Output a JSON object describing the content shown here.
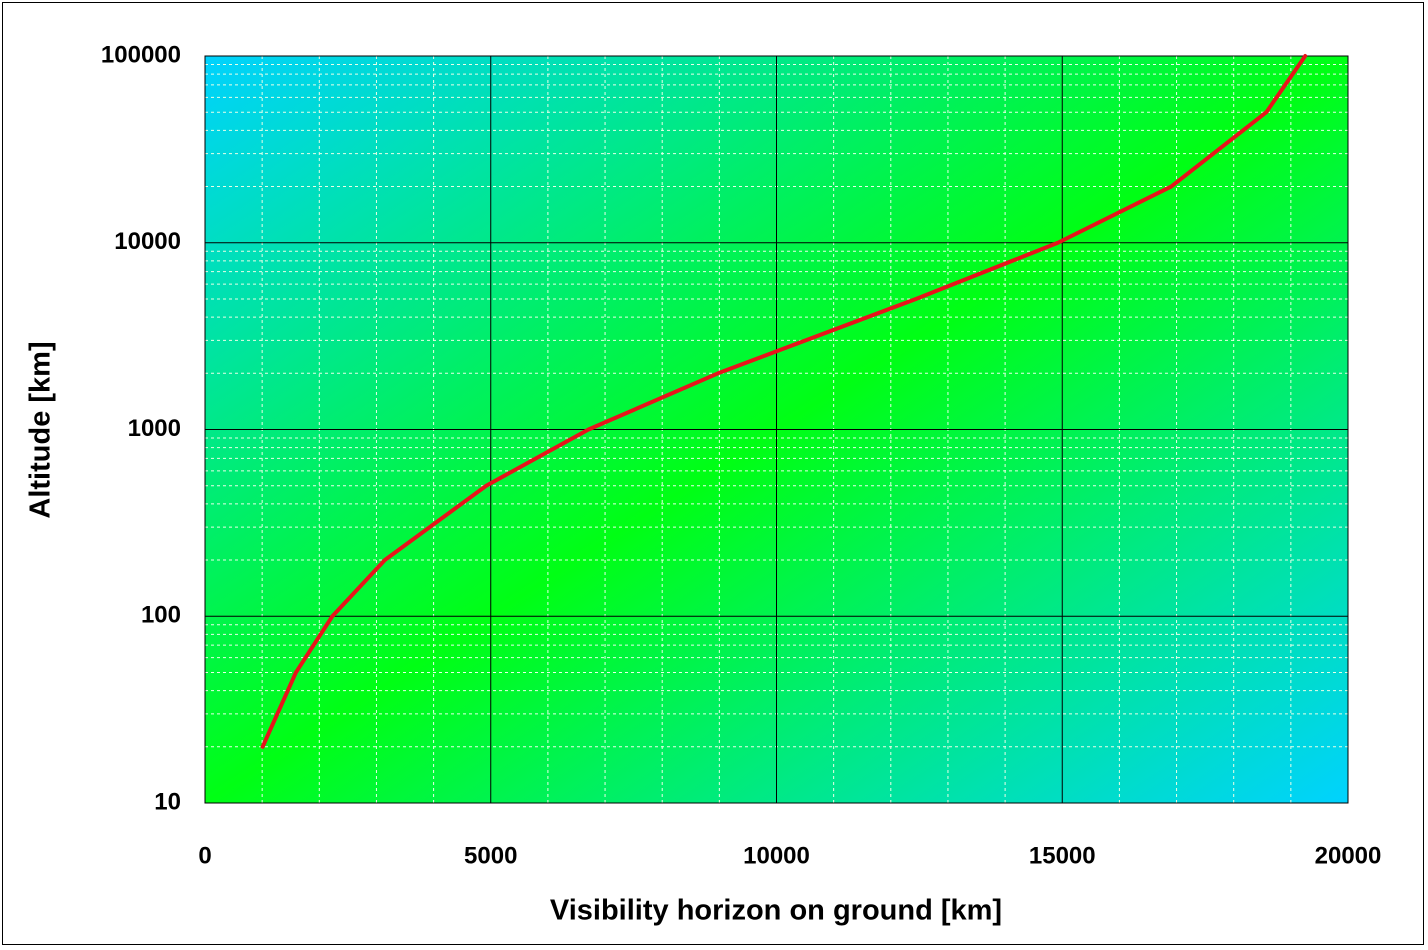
{
  "chart_data": {
    "type": "line",
    "x_label": "Visibility horizon on ground [km]",
    "y_label": "Altitude [km]",
    "series": [
      {
        "name": "Visibility horizon",
        "color": "#e8141b",
        "x": [
          1008,
          1591,
          2228,
          3147,
          4921,
          6710,
          8978,
          12439,
          14924,
          16906,
          18571,
          19251
        ],
        "values": [
          20,
          50,
          100,
          200,
          500,
          1000,
          2000,
          5000,
          10000,
          20000,
          50000,
          100000
        ]
      }
    ],
    "xlim": [
      0,
      20000
    ],
    "xticks": [
      0,
      5000,
      10000,
      15000,
      20000
    ],
    "ylim": [
      10,
      100000
    ],
    "yticks": [
      10,
      100,
      1000,
      10000,
      100000
    ],
    "yscale": "log",
    "grid": true,
    "minor_grid": true,
    "background": [
      "#00d2ff",
      "#00ff14"
    ]
  }
}
